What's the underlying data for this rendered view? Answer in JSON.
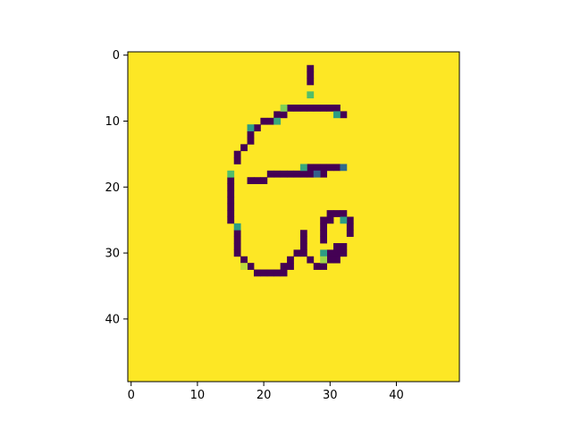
{
  "figure": {
    "background": "#ffffff",
    "colormap": "viridis",
    "colors": {
      "ink": "#440154",
      "background_pixel": "#fde725",
      "teal": "#3b9c8a",
      "green": "#5ec962",
      "blue": "#3b528b",
      "axis": "#000000"
    }
  },
  "chart_data": {
    "type": "heatmap",
    "rows": 50,
    "cols": 50,
    "default_value": 1.0,
    "xlim": [
      -0.5,
      49.5
    ],
    "ylim": [
      49.5,
      -0.5
    ],
    "xticks": [
      {
        "value": 0,
        "label": "0"
      },
      {
        "value": 10,
        "label": "10"
      },
      {
        "value": 20,
        "label": "20"
      },
      {
        "value": 30,
        "label": "30"
      },
      {
        "value": 40,
        "label": "40"
      }
    ],
    "yticks": [
      {
        "value": 0,
        "label": "0"
      },
      {
        "value": 10,
        "label": "10"
      },
      {
        "value": 20,
        "label": "20"
      },
      {
        "value": 30,
        "label": "30"
      },
      {
        "value": 40,
        "label": "40"
      }
    ],
    "dark_cells": [
      [
        2,
        27
      ],
      [
        3,
        27
      ],
      [
        4,
        27
      ],
      [
        8,
        24
      ],
      [
        8,
        25
      ],
      [
        8,
        26
      ],
      [
        8,
        27
      ],
      [
        8,
        28
      ],
      [
        8,
        29
      ],
      [
        8,
        30
      ],
      [
        8,
        31
      ],
      [
        9,
        22
      ],
      [
        9,
        23
      ],
      [
        9,
        32
      ],
      [
        10,
        20
      ],
      [
        10,
        21
      ],
      [
        11,
        19
      ],
      [
        12,
        18
      ],
      [
        13,
        18
      ],
      [
        14,
        17
      ],
      [
        15,
        16
      ],
      [
        16,
        16
      ],
      [
        17,
        27
      ],
      [
        17,
        28
      ],
      [
        17,
        29
      ],
      [
        17,
        30
      ],
      [
        17,
        31
      ],
      [
        18,
        21
      ],
      [
        18,
        22
      ],
      [
        18,
        23
      ],
      [
        18,
        24
      ],
      [
        18,
        25
      ],
      [
        18,
        26
      ],
      [
        18,
        27
      ],
      [
        18,
        29
      ],
      [
        19,
        15
      ],
      [
        19,
        18
      ],
      [
        19,
        19
      ],
      [
        19,
        20
      ],
      [
        20,
        15
      ],
      [
        21,
        15
      ],
      [
        22,
        15
      ],
      [
        23,
        15
      ],
      [
        24,
        15
      ],
      [
        25,
        15
      ],
      [
        24,
        30
      ],
      [
        24,
        31
      ],
      [
        24,
        32
      ],
      [
        25,
        29
      ],
      [
        25,
        30
      ],
      [
        25,
        33
      ],
      [
        26,
        29
      ],
      [
        26,
        33
      ],
      [
        27,
        16
      ],
      [
        27,
        26
      ],
      [
        27,
        29
      ],
      [
        27,
        33
      ],
      [
        28,
        16
      ],
      [
        28,
        26
      ],
      [
        28,
        29
      ],
      [
        29,
        16
      ],
      [
        29,
        26
      ],
      [
        29,
        31
      ],
      [
        29,
        32
      ],
      [
        30,
        16
      ],
      [
        30,
        25
      ],
      [
        30,
        26
      ],
      [
        30,
        30
      ],
      [
        30,
        31
      ],
      [
        30,
        32
      ],
      [
        31,
        17
      ],
      [
        31,
        24
      ],
      [
        31,
        27
      ],
      [
        31,
        30
      ],
      [
        31,
        31
      ],
      [
        32,
        18
      ],
      [
        32,
        23
      ],
      [
        32,
        24
      ],
      [
        32,
        28
      ],
      [
        32,
        29
      ],
      [
        33,
        19
      ],
      [
        33,
        20
      ],
      [
        33,
        21
      ],
      [
        33,
        22
      ],
      [
        33,
        23
      ]
    ],
    "mid_cells": [
      {
        "row": 6,
        "col": 27,
        "value": 0.7
      },
      {
        "row": 8,
        "col": 23,
        "value": 0.8
      },
      {
        "row": 9,
        "col": 31,
        "value": 0.55
      },
      {
        "row": 10,
        "col": 22,
        "value": 0.6
      },
      {
        "row": 11,
        "col": 18,
        "value": 0.55
      },
      {
        "row": 17,
        "col": 26,
        "value": 0.6
      },
      {
        "row": 17,
        "col": 32,
        "value": 0.35
      },
      {
        "row": 18,
        "col": 15,
        "value": 0.7
      },
      {
        "row": 18,
        "col": 28,
        "value": 0.3
      },
      {
        "row": 25,
        "col": 32,
        "value": 0.55
      },
      {
        "row": 26,
        "col": 16,
        "value": 0.55
      },
      {
        "row": 30,
        "col": 29,
        "value": 0.55
      },
      {
        "row": 31,
        "col": 29,
        "value": 0.85
      },
      {
        "row": 32,
        "col": 17,
        "value": 0.9
      }
    ]
  }
}
